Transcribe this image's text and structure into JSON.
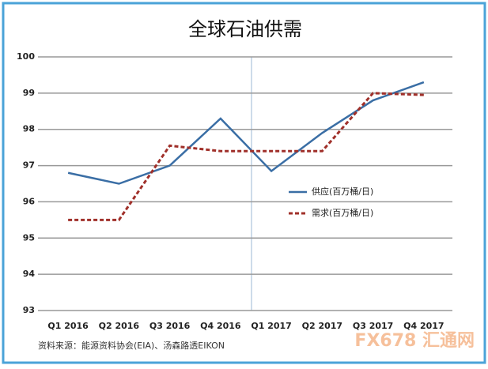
{
  "chart_data": {
    "type": "line",
    "title": "全球石油供需",
    "categories": [
      "Q1 2016",
      "Q2 2016",
      "Q3 2016",
      "Q4 2016",
      "Q1 2017",
      "Q2 2017",
      "Q3 2017",
      "Q4 2017"
    ],
    "series": [
      {
        "name": "供应(百万桶/日)",
        "color": "#3a6ea5",
        "style": "solid",
        "values": [
          96.8,
          96.5,
          97.0,
          98.3,
          96.85,
          97.9,
          98.8,
          99.3
        ]
      },
      {
        "name": "需求(百万桶/日)",
        "color": "#a0302a",
        "style": "dashed",
        "values": [
          95.5,
          95.5,
          97.55,
          97.4,
          97.4,
          97.4,
          99.0,
          98.95
        ]
      }
    ],
    "ylim": [
      93,
      100
    ],
    "yticks": [
      93,
      94,
      95,
      96,
      97,
      98,
      99,
      100
    ],
    "grid": true,
    "source": "资料来源：能源资料协会(EIA)、汤森路透EIKON",
    "logo": "FX678 汇通网"
  }
}
